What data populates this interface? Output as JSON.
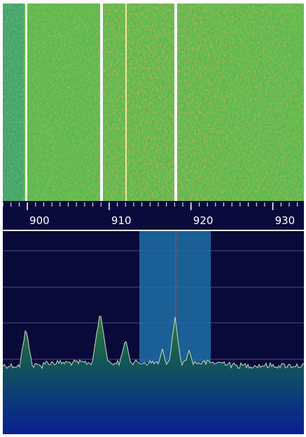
{
  "frequency_axis": {
    "xlim": [
      897,
      933.8
    ],
    "ticks": [
      900,
      910,
      920,
      930
    ]
  }
}
